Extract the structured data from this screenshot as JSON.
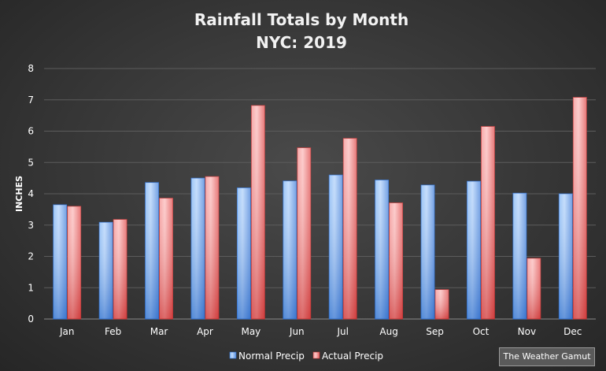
{
  "chart_data": {
    "type": "bar",
    "title": "Rainfall Totals by Month",
    "subtitle": "NYC: 2019",
    "xlabel": "",
    "ylabel": "INCHES",
    "ylim": [
      0,
      8
    ],
    "yticks": [
      0,
      1,
      2,
      3,
      4,
      5,
      6,
      7,
      8
    ],
    "grid": true,
    "legend_position": "bottom",
    "categories": [
      "Jan",
      "Feb",
      "Mar",
      "Apr",
      "May",
      "Jun",
      "Jul",
      "Aug",
      "Sep",
      "Oct",
      "Nov",
      "Dec"
    ],
    "series": [
      {
        "name": "Normal Precip",
        "color": "#5a9ae8",
        "values": [
          3.65,
          3.09,
          4.36,
          4.5,
          4.19,
          4.41,
          4.6,
          4.44,
          4.28,
          4.4,
          4.02,
          4.0
        ]
      },
      {
        "name": "Actual Precip",
        "color": "#e86060",
        "values": [
          3.6,
          3.18,
          3.86,
          4.55,
          6.82,
          5.47,
          5.77,
          3.71,
          0.94,
          6.15,
          1.94,
          7.08
        ]
      }
    ]
  },
  "watermark": "The Weather Gamut"
}
